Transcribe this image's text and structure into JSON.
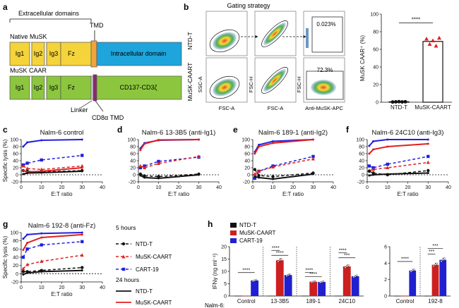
{
  "panels": {
    "a": "a",
    "b": "b",
    "c": "c",
    "d": "d",
    "e": "e",
    "f": "f",
    "g": "g",
    "h": "h"
  },
  "schematic": {
    "extracellular": "Extracellular domains",
    "tmd": "TMD",
    "native_musk": "Native MuSK",
    "musk_caar": "MuSK CAAR",
    "ig1": "Ig1",
    "ig2": "Ig2",
    "ig3": "Ig3",
    "fz": "Fz",
    "intracellular": "Intracellular domain",
    "signal": "CD137-CD3ζ",
    "linker": "Linker",
    "cd8_tmd": "CD8α TMD",
    "colors": {
      "ig": "#f5d33a",
      "caar_ig": "#8cc63f",
      "tmd": "#f0a43c",
      "intra": "#1ea5dc",
      "cd8": "#8a2a6a"
    }
  },
  "gating": {
    "title": "Gating strategy",
    "row1": "NTD-T",
    "row2": "MuSK-CAART",
    "pct1": "0.023%",
    "pct2": "72.3%",
    "ylab": {
      "ssc": "SSC-A",
      "fsch": "FSC-H"
    },
    "xlab": {
      "fsca": "FSC-A",
      "fsca2": "FSC-A",
      "apc": "Anti-MuSK-APC"
    }
  },
  "chart_data": [
    {
      "id": "b",
      "type": "bar",
      "ylabel": "MuSK CAAR⁺ (%)",
      "ylim": [
        0,
        100
      ],
      "yticks": [
        0,
        20,
        40,
        60,
        80,
        100
      ],
      "categories": [
        "NTD-T",
        "MuSK-CAART"
      ],
      "values": [
        0.5,
        69
      ],
      "points": [
        [
          0.2,
          0.4,
          0.6,
          0.3,
          0.5
        ],
        [
          72,
          66,
          70,
          64,
          73
        ]
      ],
      "significance": "****"
    },
    {
      "id": "c",
      "type": "line",
      "title": "Nalm-6 control",
      "xlabel": "E:T ratio",
      "ylabel": "Specific lysis (%)",
      "xlim": [
        0,
        40
      ],
      "ylim": [
        -20,
        100
      ],
      "xticks": [
        0,
        10,
        20,
        30,
        40
      ],
      "yticks": [
        -20,
        0,
        20,
        40,
        60,
        80,
        100
      ],
      "x": [
        1,
        3,
        10,
        30
      ],
      "series": [
        {
          "name": "CART-19",
          "color": "#2020e0",
          "dash": "dashed",
          "values": [
            28,
            33,
            42,
            55
          ]
        },
        {
          "name": "MuSK-CAART",
          "color": "#e02020",
          "dash": "dashed",
          "values": [
            25,
            18,
            15,
            25
          ]
        },
        {
          "name": "NTD-T",
          "color": "#111111",
          "dash": "dashed",
          "values": [
            12,
            10,
            8,
            12
          ]
        },
        {
          "name": "MuSK-CAART",
          "color": "#e02020",
          "dash": "solid",
          "values": [
            12,
            8,
            10,
            20
          ]
        },
        {
          "name": "NTD-T",
          "color": "#111111",
          "dash": "solid",
          "values": [
            2,
            5,
            6,
            10
          ]
        },
        {
          "name": "CART-19",
          "color": "#2020e0",
          "dash": "solid",
          "values": [
            80,
            92,
            98,
            100
          ]
        }
      ]
    },
    {
      "id": "d",
      "type": "line",
      "title": "Nalm-6 13-3B5 (anti-Ig1)",
      "xlabel": "E:T ratio",
      "ylabel": "",
      "xlim": [
        0,
        40
      ],
      "ylim": [
        -20,
        100
      ],
      "xticks": [
        0,
        10,
        20,
        30,
        40
      ],
      "yticks": [
        -20,
        0,
        20,
        40,
        60,
        80,
        100
      ],
      "x": [
        1,
        3,
        10,
        30
      ],
      "series": [
        {
          "name": "CART-19",
          "color": "#2020e0",
          "dash": "dashed",
          "values": [
            20,
            25,
            38,
            50
          ]
        },
        {
          "name": "MuSK-CAART",
          "color": "#e02020",
          "dash": "dashed",
          "values": [
            25,
            20,
            32,
            52
          ]
        },
        {
          "name": "NTD-T",
          "color": "#111111",
          "dash": "dashed",
          "values": [
            2,
            -3,
            -5,
            2
          ]
        },
        {
          "name": "NTD-T",
          "color": "#111111",
          "dash": "solid",
          "values": [
            -2,
            -8,
            -10,
            0
          ]
        },
        {
          "name": "CART-19",
          "color": "#2020e0",
          "dash": "solid",
          "values": [
            75,
            90,
            98,
            100
          ]
        },
        {
          "name": "MuSK-CAART",
          "color": "#e02020",
          "dash": "solid",
          "values": [
            70,
            88,
            99,
            100
          ]
        }
      ]
    },
    {
      "id": "e",
      "type": "line",
      "title": "Nalm-6 189-1 (anti-Ig2)",
      "xlabel": "E:T ratio",
      "ylabel": "",
      "xlim": [
        0,
        40
      ],
      "ylim": [
        -20,
        100
      ],
      "xticks": [
        0,
        10,
        20,
        30,
        40
      ],
      "yticks": [
        -20,
        0,
        20,
        40,
        60,
        80,
        100
      ],
      "x": [
        1,
        3,
        10,
        30
      ],
      "series": [
        {
          "name": "CART-19",
          "color": "#2020e0",
          "dash": "dashed",
          "values": [
            -10,
            10,
            25,
            52
          ]
        },
        {
          "name": "MuSK-CAART",
          "color": "#e02020",
          "dash": "dashed",
          "values": [
            2,
            10,
            22,
            45
          ]
        },
        {
          "name": "NTD-T",
          "color": "#111111",
          "dash": "dashed",
          "values": [
            15,
            -2,
            -5,
            5
          ]
        },
        {
          "name": "NTD-T",
          "color": "#111111",
          "dash": "solid",
          "values": [
            -5,
            -8,
            -12,
            2
          ]
        },
        {
          "name": "CART-19",
          "color": "#2020e0",
          "dash": "solid",
          "values": [
            65,
            85,
            95,
            100
          ]
        },
        {
          "name": "MuSK-CAART",
          "color": "#e02020",
          "dash": "solid",
          "values": [
            60,
            80,
            90,
            100
          ]
        }
      ]
    },
    {
      "id": "f",
      "type": "line",
      "title": "Nalm-6 24C10 (anti-Ig3)",
      "xlabel": "E:T ratio",
      "ylabel": "",
      "xlim": [
        0,
        40
      ],
      "ylim": [
        -20,
        100
      ],
      "xticks": [
        0,
        10,
        20,
        30,
        40
      ],
      "yticks": [
        -20,
        0,
        20,
        40,
        60,
        80,
        100
      ],
      "x": [
        1,
        3,
        10,
        30
      ],
      "series": [
        {
          "name": "CART-19",
          "color": "#2020e0",
          "dash": "dashed",
          "values": [
            25,
            20,
            30,
            52
          ]
        },
        {
          "name": "MuSK-CAART",
          "color": "#e02020",
          "dash": "dashed",
          "values": [
            12,
            15,
            20,
            35
          ]
        },
        {
          "name": "NTD-T",
          "color": "#111111",
          "dash": "dashed",
          "values": [
            10,
            5,
            0,
            12
          ]
        },
        {
          "name": "NTD-T",
          "color": "#111111",
          "dash": "solid",
          "values": [
            -2,
            0,
            2,
            5
          ]
        },
        {
          "name": "MuSK-CAART",
          "color": "#e02020",
          "dash": "solid",
          "values": [
            60,
            72,
            80,
            88
          ]
        },
        {
          "name": "CART-19",
          "color": "#2020e0",
          "dash": "solid",
          "values": [
            82,
            95,
            100,
            100
          ]
        }
      ]
    },
    {
      "id": "g",
      "type": "line",
      "title": "Nalm-6 192-8 (anti-Fz)",
      "xlabel": "E:T ratio",
      "ylabel": "Specific lysis (%)",
      "xlim": [
        0,
        40
      ],
      "ylim": [
        -20,
        100
      ],
      "xticks": [
        0,
        10,
        20,
        30,
        40
      ],
      "yticks": [
        -20,
        0,
        20,
        40,
        60,
        80,
        100
      ],
      "x": [
        1,
        3,
        10,
        30
      ],
      "series": [
        {
          "name": "CART-19",
          "color": "#2020e0",
          "dash": "dashed",
          "values": [
            40,
            60,
            70,
            78
          ]
        },
        {
          "name": "MuSK-CAART",
          "color": "#e02020",
          "dash": "dashed",
          "values": [
            12,
            22,
            30,
            45
          ]
        },
        {
          "name": "NTD-T",
          "color": "#111111",
          "dash": "dashed",
          "values": [
            5,
            5,
            8,
            15
          ]
        },
        {
          "name": "NTD-T",
          "color": "#111111",
          "dash": "solid",
          "values": [
            -2,
            2,
            5,
            8
          ]
        },
        {
          "name": "MuSK-CAART",
          "color": "#e02020",
          "dash": "solid",
          "values": [
            58,
            75,
            88,
            95
          ]
        },
        {
          "name": "CART-19",
          "color": "#2020e0",
          "dash": "solid",
          "values": [
            85,
            95,
            98,
            100
          ]
        }
      ]
    },
    {
      "id": "h1",
      "type": "bar",
      "ylabel": "IFNγ (ng ml⁻¹)",
      "ylim": [
        0,
        20
      ],
      "yticks": [
        0,
        5,
        10,
        15,
        20
      ],
      "categories": [
        "Control",
        "13-3B5",
        "189-1",
        "24C10"
      ],
      "series": [
        {
          "name": "NTD-T",
          "color": "#111111",
          "values": [
            0.1,
            0.1,
            0.1,
            0.1
          ]
        },
        {
          "name": "MuSK-CAART",
          "color": "#cc1f1f",
          "values": [
            0.1,
            14.5,
            5.8,
            12
          ]
        },
        {
          "name": "CART-19",
          "color": "#2020d0",
          "values": [
            6.3,
            8.5,
            5.7,
            8
          ]
        }
      ],
      "significance": [
        "****",
        "****",
        "****",
        "****",
        "****",
        "****",
        "***",
        "****"
      ]
    },
    {
      "id": "h2",
      "type": "bar",
      "ylabel": "",
      "ylim": [
        0,
        6
      ],
      "yticks": [
        0,
        2,
        4,
        6
      ],
      "categories": [
        "Control",
        "192-8"
      ],
      "series": [
        {
          "name": "NTD-T",
          "color": "#111111",
          "values": [
            0.02,
            0.02
          ]
        },
        {
          "name": "MuSK-CAART",
          "color": "#cc1f1f",
          "values": [
            0.02,
            3.8
          ]
        },
        {
          "name": "CART-19",
          "color": "#2020d0",
          "values": [
            3.1,
            4.4
          ]
        }
      ],
      "significance": [
        "****",
        "***",
        "***"
      ]
    }
  ],
  "legend_g": {
    "h5": "5 hours",
    "h24": "24 hours",
    "items5": [
      "NTD-T",
      "MuSK-CAART",
      "CART-19"
    ],
    "items24": [
      "NTD-T",
      "MuSK-CAART"
    ]
  },
  "legend_h": {
    "items": [
      "NTD-T",
      "MuSK-CAART",
      "CART-19"
    ]
  },
  "h_axis": {
    "prefix": "Nalm-6:"
  }
}
